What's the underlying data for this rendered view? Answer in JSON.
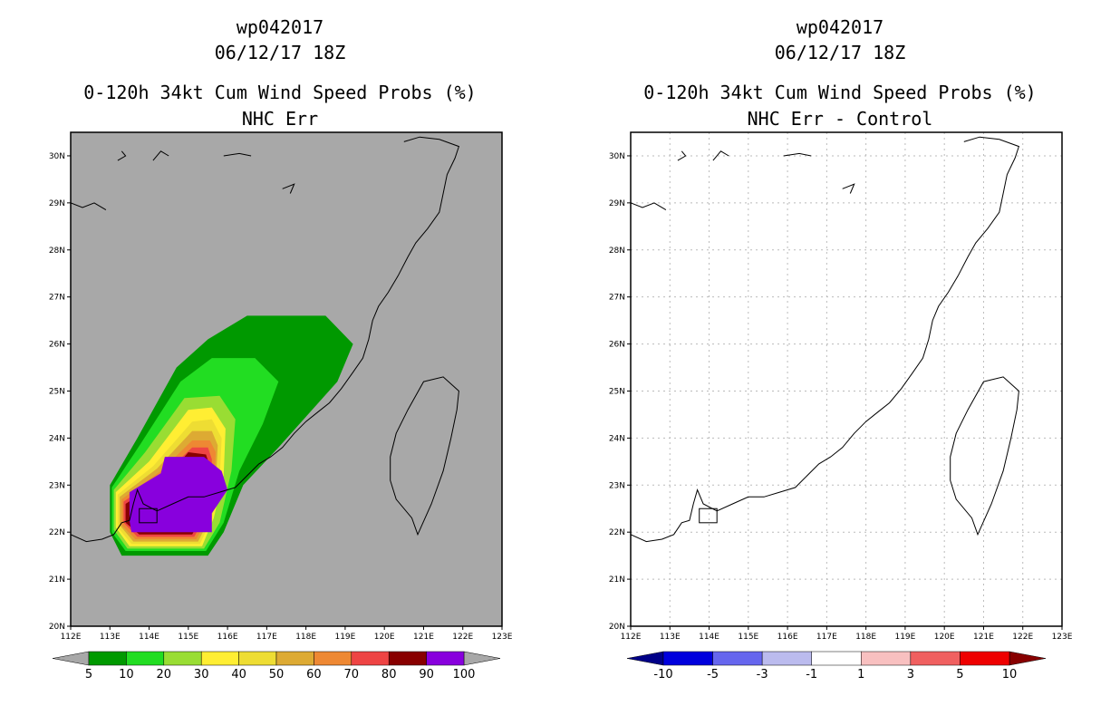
{
  "panels": [
    {
      "storm_id": "wp042017",
      "datetime": "06/12/17 18Z",
      "product": "0-120h 34kt Cum Wind Speed Probs (%)",
      "subtitle": "NHC Err",
      "background": "#a8a8a8",
      "colorbar": {
        "labels": [
          "5",
          "10",
          "20",
          "30",
          "40",
          "50",
          "60",
          "70",
          "80",
          "90",
          "100"
        ],
        "colors": [
          "#009900",
          "#22dd22",
          "#99dd33",
          "#ffee33",
          "#eedd33",
          "#ddaa33",
          "#ee8833",
          "#ee4444",
          "#880000",
          "#8800dd"
        ],
        "under_color": "#a8a8a8",
        "over_color": "#a8a8a8"
      }
    },
    {
      "storm_id": "wp042017",
      "datetime": "06/12/17 18Z",
      "product": "0-120h 34kt Cum Wind Speed Probs (%)",
      "subtitle": "NHC Err - Control",
      "background": "#ffffff",
      "colorbar": {
        "labels": [
          "-10",
          "-5",
          "-3",
          "-1",
          "1",
          "3",
          "5",
          "10"
        ],
        "colors": [
          "#0000dd",
          "#6666ee",
          "#bbbbee",
          "#ffffff",
          "#f8c0c0",
          "#f06060",
          "#ee0000"
        ],
        "under_color": "#000088",
        "over_color": "#880000"
      }
    }
  ],
  "axes": {
    "x_ticks": [
      "112E",
      "113E",
      "114E",
      "115E",
      "116E",
      "117E",
      "118E",
      "119E",
      "120E",
      "121E",
      "122E",
      "123E"
    ],
    "y_ticks": [
      "20N",
      "21N",
      "22N",
      "23N",
      "24N",
      "25N",
      "26N",
      "27N",
      "28N",
      "29N",
      "30N"
    ],
    "lon_range": [
      112,
      123
    ],
    "lat_range": [
      20,
      30.5
    ]
  }
}
